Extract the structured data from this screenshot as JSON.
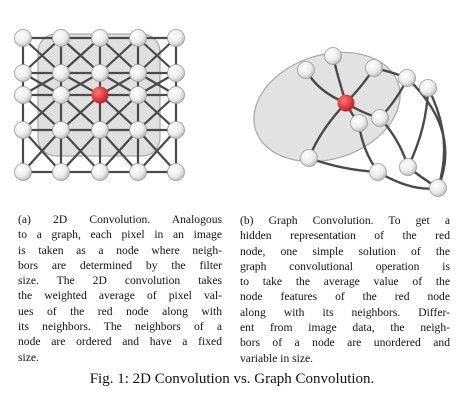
{
  "figure": {
    "panel_a": {
      "caption": "(a) 2D Convolution. Analogous to a graph, each pixel in an image is taken as a node where neighbors are determined by the filter size. The 2D convolution takes the weighted average of pixel values of the red node along with its neighbors. The neighbors of a node are ordered and have a fixed size.",
      "caption_lines": [
        "(a) 2D Convolution. Analogous",
        "to a graph, each pixel in an image",
        "is taken as a node where neigh-",
        "bors are determined by the filter",
        "size. The 2D convolution takes",
        "the weighted average of pixel val-",
        "ues of the red node along with",
        "its neighbors. The neighbors of a",
        "node are ordered and have a fixed",
        "size."
      ]
    },
    "panel_b": {
      "caption": "(b) Graph Convolution. To get a hidden representation of the red node, one simple solution of the graph convolutional operation is to take the average value of the node features of the red node along with its neighbors. Different from image data, the neighbors of a node are unordered and variable in size.",
      "caption_lines": [
        "(b) Graph Convolution. To get a",
        "hidden representation of the red",
        "node, one simple solution of the",
        "graph convolutional operation is",
        "to take the average value of the",
        "node features of the red node",
        "along with its neighbors. Differ-",
        "ent from image data, the neigh-",
        "bors of a node are unordered and",
        "variable in size."
      ]
    },
    "main_caption": "Fig. 1: 2D Convolution vs. Graph Convolution.",
    "colors": {
      "node": "#f2f2f2",
      "center_node": "#e0393e",
      "edge": "#4a4a4a",
      "highlight": "#bdbdbd"
    }
  }
}
